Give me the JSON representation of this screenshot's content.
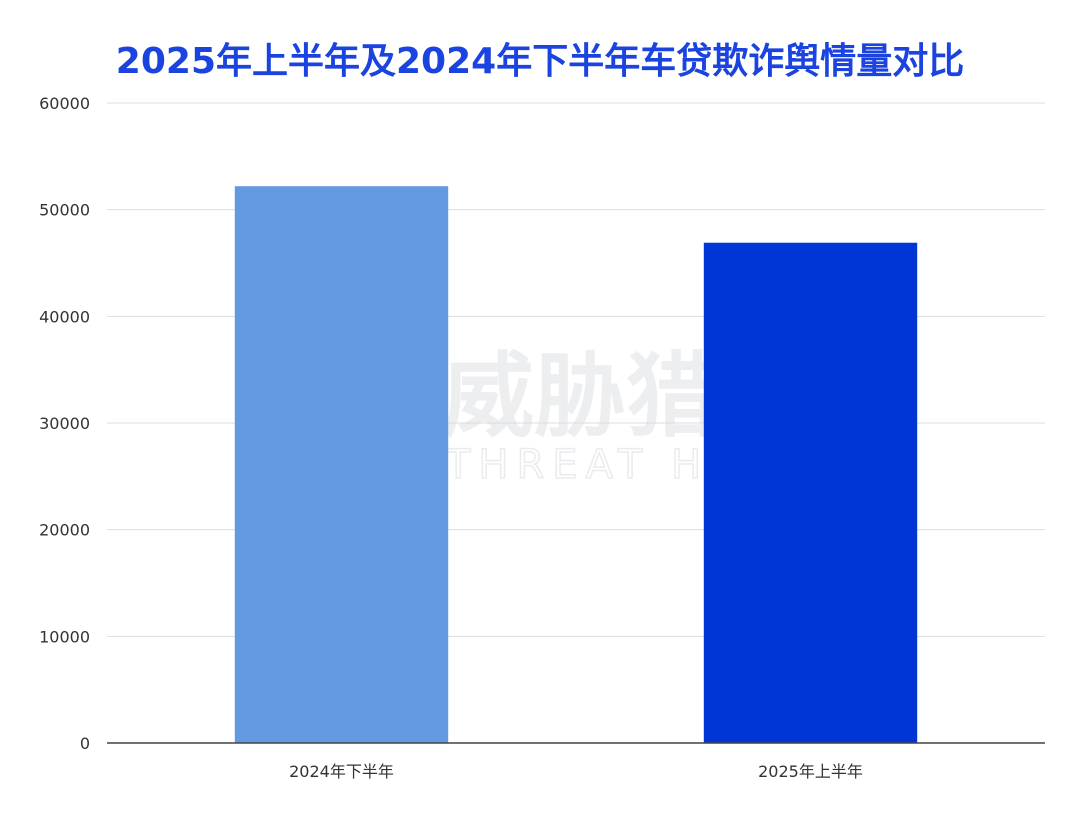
{
  "chart_data": {
    "type": "bar",
    "title": "2025年上半年及2024年下半年车贷欺诈舆情量对比",
    "categories": [
      "2024年下半年",
      "2025年上半年"
    ],
    "values": [
      52200,
      46900
    ],
    "bar_colors": [
      "#6399e0",
      "#0035d6"
    ],
    "title_color": "#1a43e0",
    "ylim": [
      0,
      60000
    ],
    "yticks": [
      "0",
      "10000",
      "20000",
      "30000",
      "40000",
      "50000",
      "60000"
    ],
    "grid": true,
    "xlabel": "",
    "ylabel": ""
  },
  "watermark": {
    "text_cn": "威胁猎人",
    "text_en": "THREAT HUNTER"
  }
}
